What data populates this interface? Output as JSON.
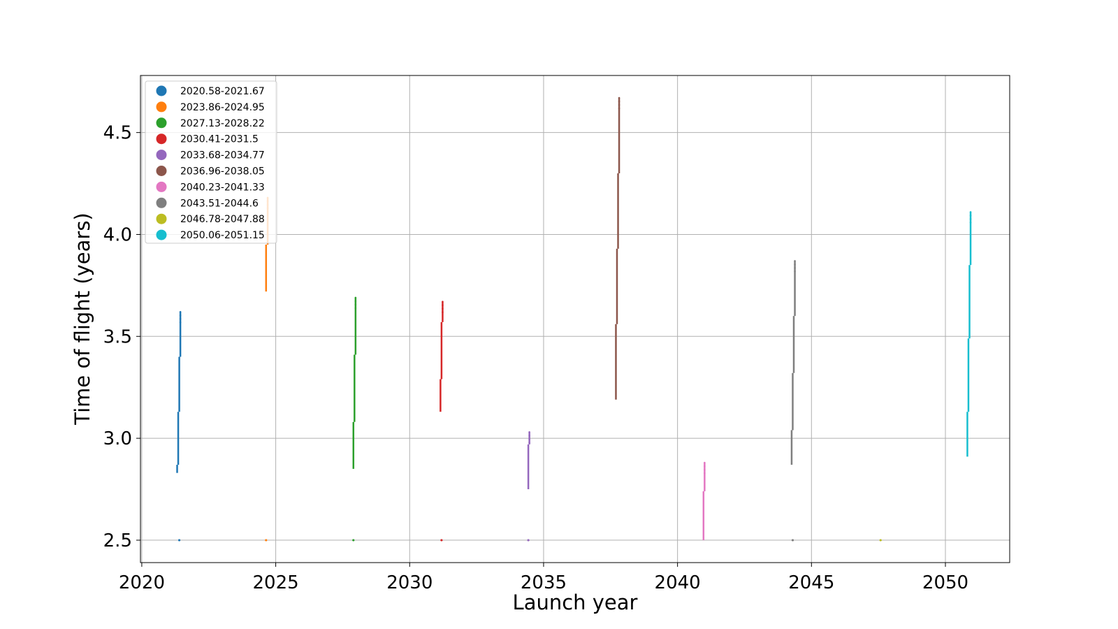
{
  "chart_data": {
    "type": "scatter",
    "title": "",
    "xlabel": "Launch year",
    "ylabel": "Time of flight (years)",
    "xlim": [
      2019.95,
      2052.4
    ],
    "ylim": [
      2.39,
      4.78
    ],
    "xticks": [
      2020,
      2025,
      2030,
      2035,
      2040,
      2045,
      2050
    ],
    "yticks": [
      2.5,
      3.0,
      3.5,
      4.0,
      4.5
    ],
    "xtick_labels": [
      "2020",
      "2025",
      "2030",
      "2035",
      "2040",
      "2045",
      "2050"
    ],
    "ytick_labels": [
      "2.5",
      "3.0",
      "3.5",
      "4.0",
      "4.5"
    ],
    "grid": true,
    "legend_position": "top-left",
    "series": [
      {
        "name": "2020.58-2021.67",
        "color": "#1f77b4",
        "segments": [
          [
            2021.32,
            2.83,
            2.87
          ],
          [
            2021.36,
            2.87,
            3.13
          ],
          [
            2021.4,
            3.13,
            3.4
          ],
          [
            2021.44,
            3.4,
            3.62
          ]
        ],
        "baseline_x": 2021.4
      },
      {
        "name": "2023.86-2024.95",
        "color": "#ff7f0e",
        "segments": [
          [
            2024.64,
            3.72,
            3.95
          ],
          [
            2024.7,
            3.95,
            4.18
          ]
        ],
        "baseline_x": 2024.64
      },
      {
        "name": "2027.13-2028.22",
        "color": "#2ca02c",
        "segments": [
          [
            2027.9,
            2.85,
            3.08
          ],
          [
            2027.94,
            3.08,
            3.41
          ],
          [
            2027.98,
            3.41,
            3.69
          ]
        ],
        "baseline_x": 2027.9
      },
      {
        "name": "2030.41-2031.5",
        "color": "#d62728",
        "segments": [
          [
            2031.15,
            3.13,
            3.29
          ],
          [
            2031.19,
            3.29,
            3.57
          ],
          [
            2031.23,
            3.57,
            3.67
          ]
        ],
        "baseline_x": 2031.19
      },
      {
        "name": "2033.68-2034.77",
        "color": "#9467bd",
        "segments": [
          [
            2034.43,
            2.75,
            2.97
          ],
          [
            2034.47,
            2.97,
            3.03
          ]
        ],
        "baseline_x": 2034.43
      },
      {
        "name": "2036.96-2038.05",
        "color": "#8c564b",
        "segments": [
          [
            2037.7,
            3.19,
            3.56
          ],
          [
            2037.74,
            3.56,
            3.93
          ],
          [
            2037.78,
            3.93,
            4.3
          ],
          [
            2037.82,
            4.3,
            4.67
          ]
        ],
        "baseline_x": null
      },
      {
        "name": "2040.23-2041.33",
        "color": "#e377c2",
        "segments": [
          [
            2040.97,
            2.5,
            2.74
          ],
          [
            2041.01,
            2.74,
            2.88
          ]
        ],
        "baseline_x": null
      },
      {
        "name": "2043.51-2044.6",
        "color": "#7f7f7f",
        "segments": [
          [
            2044.26,
            2.87,
            3.04
          ],
          [
            2044.3,
            3.04,
            3.32
          ],
          [
            2044.34,
            3.32,
            3.6
          ],
          [
            2044.38,
            3.6,
            3.87
          ]
        ],
        "baseline_x": 2044.3
      },
      {
        "name": "2046.78-2047.88",
        "color": "#bcbd22",
        "segments": [],
        "baseline_x": 2047.58
      },
      {
        "name": "2050.06-2051.15",
        "color": "#17becf",
        "segments": [
          [
            2050.82,
            2.91,
            3.13
          ],
          [
            2050.86,
            3.13,
            3.49
          ],
          [
            2050.9,
            3.49,
            3.85
          ],
          [
            2050.94,
            3.85,
            4.11
          ]
        ],
        "baseline_x": null
      }
    ]
  }
}
